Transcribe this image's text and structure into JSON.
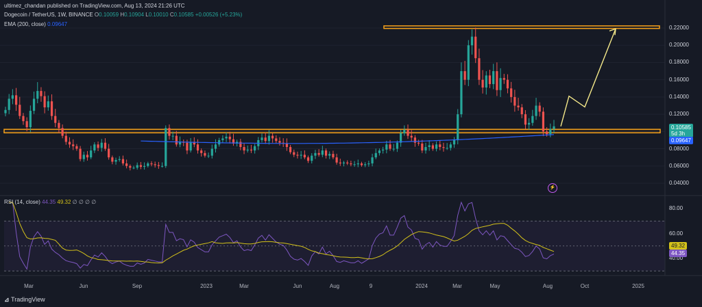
{
  "header": {
    "published": "ultimez_chandan published on TradingView.com, Aug 13, 2024 21:26 UTC",
    "symbol": "Dogecoin / TetherUS, 1W, BINANCE",
    "o_label": "O",
    "open": "0.10059",
    "h_label": "H",
    "high": "0.10904",
    "l_label": "L",
    "low": "0.10010",
    "c_label": "C",
    "close": "0.10585",
    "change": "+0.00526 (+5.23%)",
    "ema_label": "EMA (200, close)",
    "ema_value": "0.09647",
    "rsi_label": "RSI (14, close)",
    "rsi_value": "44.35",
    "rsi_ma_value": "49.32",
    "rsi_extra": "∅ ∅ ∅ ∅"
  },
  "price_axis": [
    "0.22000",
    "0.20000",
    "0.18000",
    "0.16000",
    "0.14000",
    "0.12000",
    "0.10000",
    "0.08000",
    "0.06000",
    "0.04000"
  ],
  "rsi_axis": [
    "80.00",
    "60.00",
    "40.00"
  ],
  "tags": {
    "price": "0.10585",
    "countdown": "5d 3h",
    "ema": "0.09647",
    "rsi_ma": "49.32",
    "rsi": "44.35"
  },
  "time_axis": [
    "Mar",
    "Jun",
    "Sep",
    "2023",
    "Mar",
    "Jun",
    "Aug",
    "9",
    "2024",
    "Mar",
    "May",
    "Aug",
    "Oct",
    "2025"
  ],
  "footer": {
    "brand": "TradingView"
  },
  "colors": {
    "up": "#26a69a",
    "down": "#ef5350",
    "ema": "#2962ff",
    "zone": "#f7a21b",
    "projection": "#f5e98a",
    "rsi": "#7e57c2",
    "rsi_ma": "#d4c21a",
    "bg": "#161a25"
  },
  "chart_data": {
    "type": "candlestick",
    "price_range": [
      0.03,
      0.235
    ],
    "candles_weekly_close_approx": [
      0.125,
      0.138,
      0.142,
      0.131,
      0.118,
      0.112,
      0.105,
      0.124,
      0.138,
      0.147,
      0.141,
      0.128,
      0.135,
      0.118,
      0.11,
      0.104,
      0.095,
      0.088,
      0.085,
      0.083,
      0.08,
      0.068,
      0.073,
      0.07,
      0.078,
      0.085,
      0.081,
      0.087,
      0.08,
      0.07,
      0.065,
      0.067,
      0.068,
      0.063,
      0.06,
      0.058,
      0.058,
      0.061,
      0.059,
      0.06,
      0.063,
      0.062,
      0.061,
      0.06,
      0.06,
      0.104,
      0.095,
      0.095,
      0.085,
      0.088,
      0.087,
      0.078,
      0.088,
      0.085,
      0.078,
      0.075,
      0.072,
      0.072,
      0.08,
      0.085,
      0.09,
      0.092,
      0.094,
      0.091,
      0.086,
      0.088,
      0.082,
      0.078,
      0.079,
      0.078,
      0.083,
      0.09,
      0.093,
      0.089,
      0.095,
      0.092,
      0.089,
      0.087,
      0.086,
      0.082,
      0.076,
      0.073,
      0.072,
      0.073,
      0.07,
      0.066,
      0.072,
      0.075,
      0.073,
      0.078,
      0.072,
      0.074,
      0.07,
      0.064,
      0.063,
      0.064,
      0.063,
      0.062,
      0.062,
      0.063,
      0.061,
      0.062,
      0.063,
      0.07,
      0.075,
      0.078,
      0.079,
      0.085,
      0.08,
      0.08,
      0.087,
      0.098,
      0.102,
      0.095,
      0.093,
      0.087,
      0.086,
      0.078,
      0.082,
      0.084,
      0.08,
      0.085,
      0.082,
      0.081,
      0.081,
      0.085,
      0.09,
      0.12,
      0.17,
      0.16,
      0.2,
      0.21,
      0.185,
      0.16,
      0.151,
      0.165,
      0.155,
      0.17,
      0.148,
      0.162,
      0.16,
      0.15,
      0.14,
      0.13,
      0.128,
      0.12,
      0.108,
      0.11,
      0.118,
      0.13,
      0.123,
      0.1,
      0.097,
      0.103,
      0.106
    ],
    "ema_200_start": 0.089,
    "ema_200_end": 0.09647,
    "support_zone": [
      0.0985,
      0.1025
    ],
    "resistance_zone": [
      0.2195,
      0.2225
    ],
    "projection_points": [
      0.106,
      0.141,
      0.1285,
      0.219
    ],
    "rsi_range": [
      22,
      85
    ],
    "rsi_levels": [
      70,
      50,
      30
    ]
  }
}
